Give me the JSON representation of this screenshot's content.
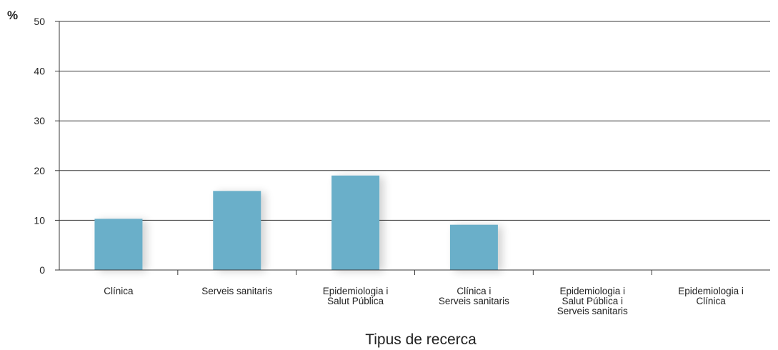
{
  "chart_data": {
    "type": "bar",
    "title": "",
    "ylabel": "%",
    "xlabel": "Tipus de recerca",
    "ylim": [
      0,
      50
    ],
    "yticks": [
      0,
      10,
      20,
      30,
      40,
      50
    ],
    "grid": true,
    "categories": [
      [
        "Clínica"
      ],
      [
        "Serveis sanitaris"
      ],
      [
        "Epidemiologia i",
        "Salut Pública"
      ],
      [
        "Clínica i",
        "Serveis sanitaris"
      ],
      [
        "Epidemiologia i",
        "Salut Pública i",
        "Serveis sanitaris"
      ],
      [
        "Epidemiologia i",
        "Clínica"
      ]
    ],
    "values": [
      10.3,
      15.9,
      19.0,
      9.1,
      0,
      0
    ],
    "bar_color": "#6aafc9"
  }
}
